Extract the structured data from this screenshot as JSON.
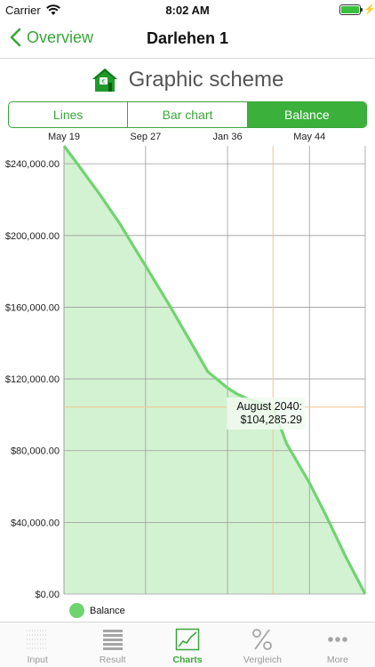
{
  "status": {
    "carrier": "Carrier",
    "time": "8:02 AM",
    "battery_level": 1.0,
    "accent": "#38c13d"
  },
  "nav": {
    "back_label": "Overview",
    "title": "Darlehen 1",
    "accent": "#3aa63a"
  },
  "header": {
    "heading": "Graphic scheme",
    "icon": "house-euro-icon"
  },
  "segments": [
    {
      "label": "Lines",
      "active": false
    },
    {
      "label": "Bar chart",
      "active": false
    },
    {
      "label": "Balance",
      "active": true
    }
  ],
  "chart_data": {
    "type": "area",
    "x_tick_labels": [
      "May 19",
      "Sep 27",
      "Jan 36",
      "May 44"
    ],
    "x_ticks_year": [
      2019.37,
      2027.67,
      2036.0,
      2044.33
    ],
    "x_range": [
      2019.37,
      2050.0
    ],
    "y_tick_labels": [
      "$0.00",
      "$40,000.00",
      "$80,000.00",
      "$120,000.00",
      "$160,000.00",
      "$200,000.00",
      "$240,000.00"
    ],
    "ylim": [
      0,
      250000
    ],
    "series": [
      {
        "name": "Balance",
        "color": "#6fd46f",
        "points": [
          [
            2019.37,
            250000
          ],
          [
            2021.0,
            238000
          ],
          [
            2023.0,
            223000
          ],
          [
            2025.0,
            207000
          ],
          [
            2027.67,
            183000
          ],
          [
            2030.0,
            162000
          ],
          [
            2032.0,
            143000
          ],
          [
            2034.0,
            124000
          ],
          [
            2036.0,
            115000
          ],
          [
            2037.0,
            111500
          ],
          [
            2038.0,
            109000
          ],
          [
            2040.62,
            104285.29
          ],
          [
            2042.0,
            84000
          ],
          [
            2044.33,
            62000
          ],
          [
            2046.0,
            44000
          ],
          [
            2048.0,
            21000
          ],
          [
            2050.0,
            0
          ]
        ]
      }
    ],
    "highlight": {
      "label": "August 2040:",
      "value": "$104,285.29",
      "x": 2040.62,
      "y": 104285.29
    },
    "grid": true,
    "legend": "bottom-left",
    "legend_label": "Balance"
  },
  "tabs": [
    {
      "label": "Input",
      "icon": "input-grid-icon",
      "active": false
    },
    {
      "label": "Result",
      "icon": "result-list-icon",
      "active": false
    },
    {
      "label": "Charts",
      "icon": "charts-icon",
      "active": true
    },
    {
      "label": "Vergleich",
      "icon": "percent-icon",
      "active": false
    },
    {
      "label": "More",
      "icon": "more-dots-icon",
      "active": false
    }
  ]
}
